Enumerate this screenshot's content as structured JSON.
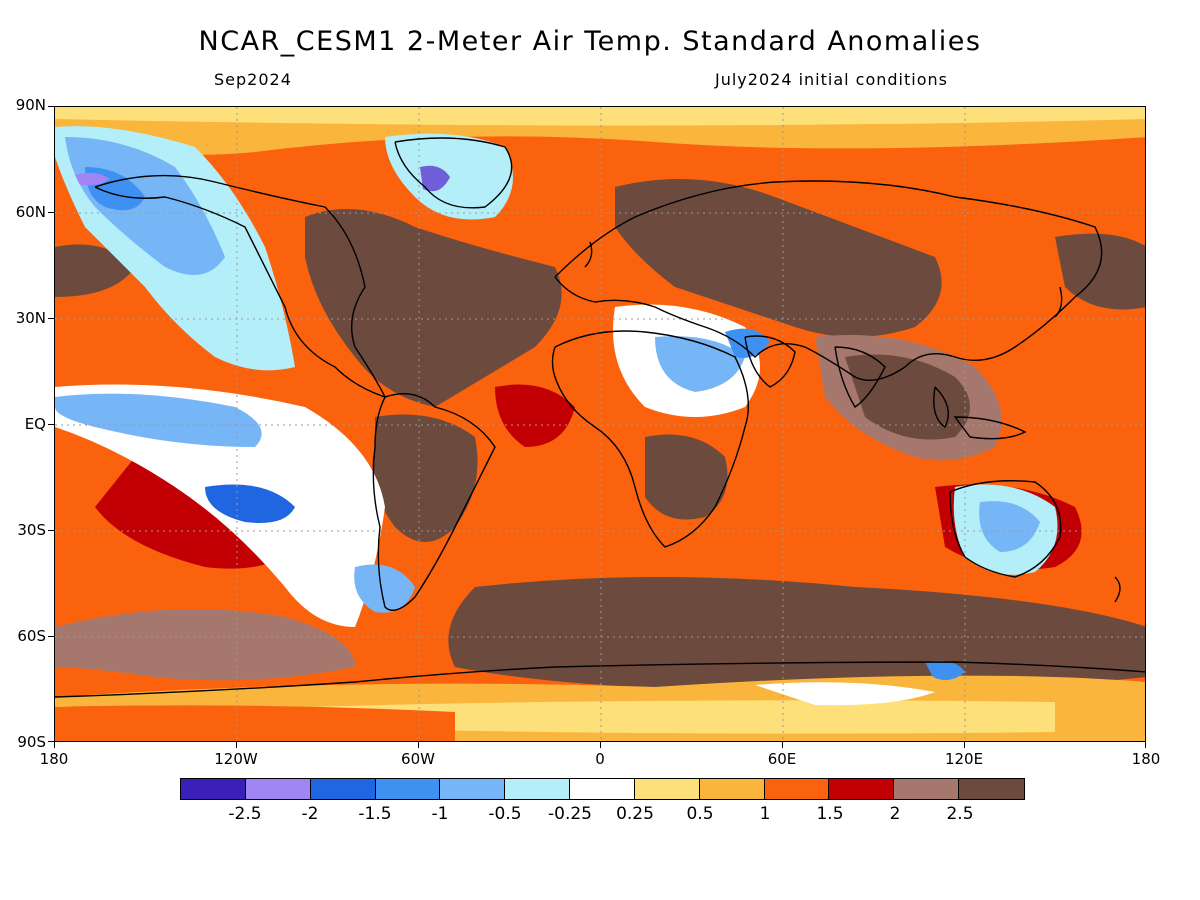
{
  "header": {
    "title": "NCAR_CESM1 2-Meter Air Temp. Standard Anomalies",
    "valid_month": "Sep2024",
    "init_conditions": "July2024 initial conditions"
  },
  "map": {
    "lat_labels": [
      "90N",
      "60N",
      "30N",
      "EQ",
      "30S",
      "60S",
      "90S"
    ],
    "lon_labels": [
      "180",
      "120W",
      "60W",
      "0",
      "60E",
      "120E",
      "180"
    ]
  },
  "colorbar": {
    "colors": [
      "#3a1fb8",
      "#9f86f3",
      "#1f66e0",
      "#3f91f1",
      "#77b6f6",
      "#b3eef9",
      "#ffffff",
      "#fee07b",
      "#f9b53c",
      "#fb620e",
      "#c20004",
      "#a6786d",
      "#6c4a3d"
    ],
    "labels": [
      "-2.5",
      "-2",
      "-1.5",
      "-1",
      "-0.5",
      "-0.25",
      "0.25",
      "0.5",
      "1",
      "1.5",
      "2",
      "2.5"
    ]
  }
}
